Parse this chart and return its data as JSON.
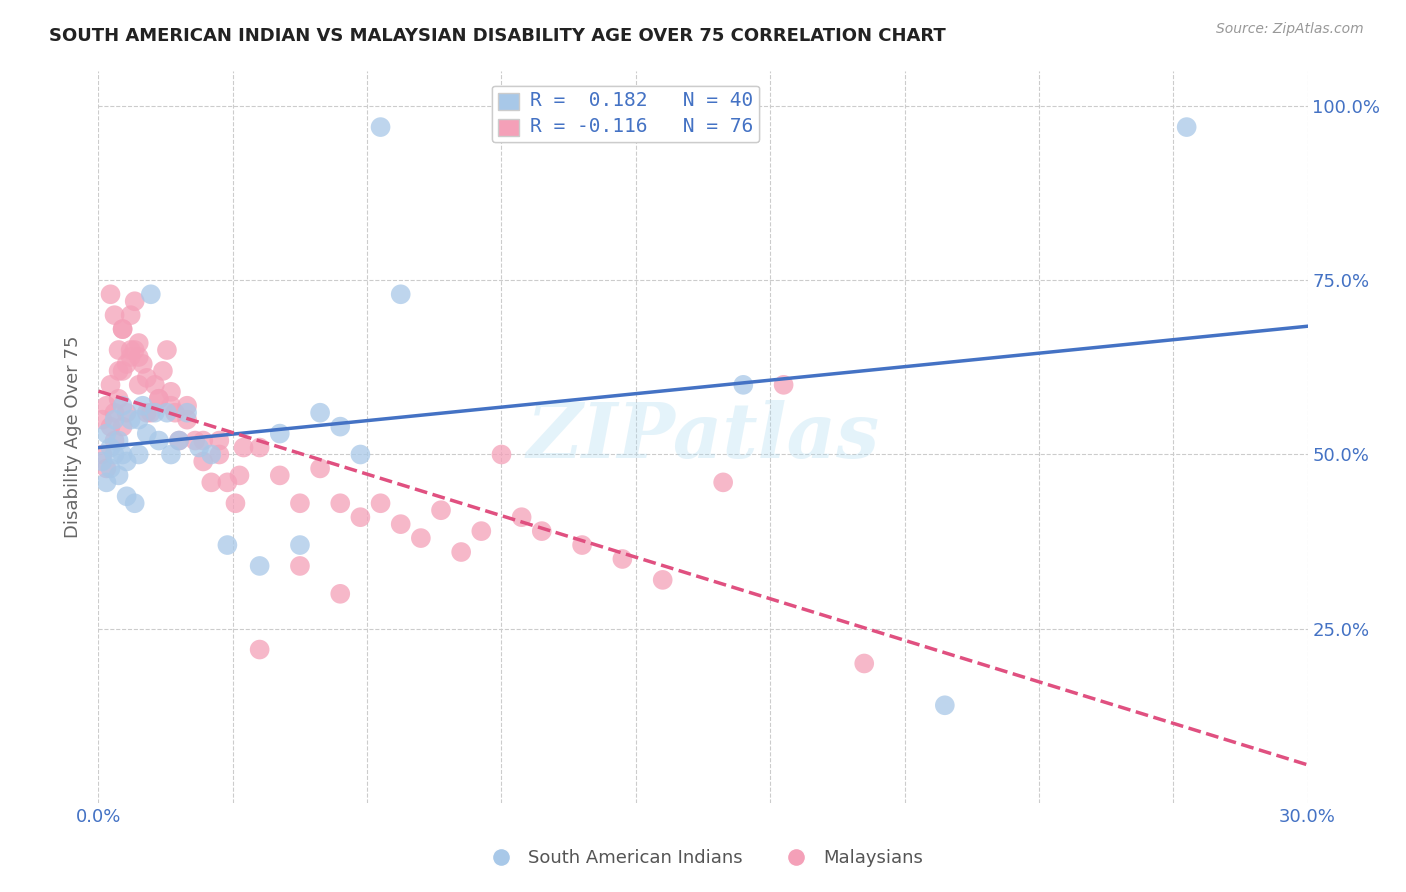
{
  "title": "SOUTH AMERICAN INDIAN VS MALAYSIAN DISABILITY AGE OVER 75 CORRELATION CHART",
  "source": "Source: ZipAtlas.com",
  "ylabel": "Disability Age Over 75",
  "xmin": 0.0,
  "xmax": 0.3,
  "ymin": 0.0,
  "ymax": 1.05,
  "color_blue": "#A8C8E8",
  "color_pink": "#F4A0B8",
  "line_color_blue": "#4472C4",
  "line_color_pink": "#E05080",
  "watermark": "ZIPatlas",
  "blue_x": [
    0.001,
    0.002,
    0.002,
    0.003,
    0.003,
    0.004,
    0.004,
    0.005,
    0.005,
    0.006,
    0.006,
    0.007,
    0.007,
    0.008,
    0.009,
    0.01,
    0.01,
    0.011,
    0.012,
    0.013,
    0.014,
    0.015,
    0.017,
    0.018,
    0.02,
    0.022,
    0.025,
    0.028,
    0.032,
    0.04,
    0.045,
    0.05,
    0.055,
    0.06,
    0.065,
    0.07,
    0.075,
    0.16,
    0.21,
    0.27
  ],
  "blue_y": [
    0.49,
    0.46,
    0.53,
    0.51,
    0.48,
    0.55,
    0.5,
    0.47,
    0.52,
    0.57,
    0.5,
    0.44,
    0.49,
    0.55,
    0.43,
    0.5,
    0.55,
    0.57,
    0.53,
    0.73,
    0.56,
    0.52,
    0.56,
    0.5,
    0.52,
    0.56,
    0.51,
    0.5,
    0.37,
    0.34,
    0.53,
    0.37,
    0.56,
    0.54,
    0.5,
    0.97,
    0.73,
    0.6,
    0.14,
    0.97
  ],
  "pink_x": [
    0.001,
    0.001,
    0.002,
    0.002,
    0.003,
    0.003,
    0.004,
    0.004,
    0.005,
    0.005,
    0.005,
    0.006,
    0.006,
    0.006,
    0.007,
    0.007,
    0.008,
    0.008,
    0.009,
    0.009,
    0.01,
    0.01,
    0.011,
    0.012,
    0.013,
    0.014,
    0.015,
    0.016,
    0.017,
    0.018,
    0.019,
    0.02,
    0.022,
    0.024,
    0.026,
    0.028,
    0.03,
    0.032,
    0.034,
    0.036,
    0.04,
    0.045,
    0.05,
    0.055,
    0.06,
    0.065,
    0.07,
    0.075,
    0.08,
    0.085,
    0.09,
    0.095,
    0.1,
    0.105,
    0.11,
    0.12,
    0.13,
    0.14,
    0.155,
    0.17,
    0.003,
    0.004,
    0.006,
    0.008,
    0.01,
    0.012,
    0.015,
    0.018,
    0.022,
    0.026,
    0.03,
    0.035,
    0.04,
    0.05,
    0.06,
    0.19
  ],
  "pink_y": [
    0.5,
    0.55,
    0.57,
    0.48,
    0.54,
    0.6,
    0.52,
    0.56,
    0.62,
    0.58,
    0.65,
    0.54,
    0.62,
    0.68,
    0.56,
    0.63,
    0.64,
    0.7,
    0.72,
    0.65,
    0.6,
    0.66,
    0.63,
    0.56,
    0.56,
    0.6,
    0.58,
    0.62,
    0.65,
    0.59,
    0.56,
    0.52,
    0.57,
    0.52,
    0.49,
    0.46,
    0.52,
    0.46,
    0.43,
    0.51,
    0.51,
    0.47,
    0.43,
    0.48,
    0.43,
    0.41,
    0.43,
    0.4,
    0.38,
    0.42,
    0.36,
    0.39,
    0.5,
    0.41,
    0.39,
    0.37,
    0.35,
    0.32,
    0.46,
    0.6,
    0.73,
    0.7,
    0.68,
    0.65,
    0.64,
    0.61,
    0.58,
    0.57,
    0.55,
    0.52,
    0.5,
    0.47,
    0.22,
    0.34,
    0.3,
    0.2
  ]
}
